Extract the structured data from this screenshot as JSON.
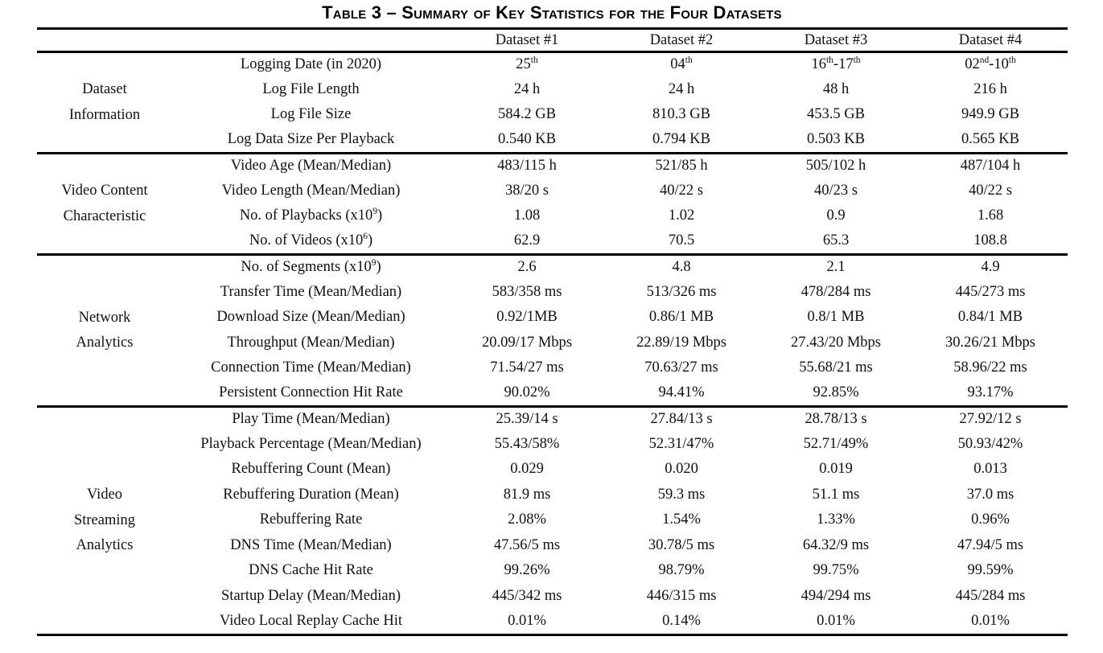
{
  "title": "Table 3 – Summary of Key Statistics for the Four Datasets",
  "table": {
    "corner_label": "",
    "column_headers": [
      "Dataset #1",
      "Dataset #2",
      "Dataset #3",
      "Dataset #4"
    ],
    "groups": [
      {
        "label": "Dataset Information",
        "label_lines": [
          "Dataset",
          "Information"
        ],
        "rows": [
          {
            "label": "Logging Date (in 2020)",
            "values": [
              "25^{th}",
              "04^{th}",
              "16^{th}-17^{th}",
              "02^{nd}-10^{th}"
            ]
          },
          {
            "label": "Log File Length",
            "values": [
              "24 h",
              "24 h",
              "48 h",
              "216 h"
            ]
          },
          {
            "label": "Log File Size",
            "values": [
              "584.2 GB",
              "810.3 GB",
              "453.5 GB",
              "949.9 GB"
            ]
          },
          {
            "label": "Log Data Size Per Playback",
            "values": [
              "0.540 KB",
              "0.794 KB",
              "0.503 KB",
              "0.565 KB"
            ]
          }
        ]
      },
      {
        "label": "Video Content Characteristic",
        "label_lines": [
          "Video Content",
          "Characteristic"
        ],
        "rows": [
          {
            "label": "Video Age (Mean/Median)",
            "values": [
              "483/115 h",
              "521/85 h",
              "505/102 h",
              "487/104 h"
            ]
          },
          {
            "label": "Video Length (Mean/Median)",
            "values": [
              "38/20 s",
              "40/22 s",
              "40/23 s",
              "40/22 s"
            ]
          },
          {
            "label": "No. of Playbacks (x10^{9})",
            "values": [
              "1.08",
              "1.02",
              "0.9",
              "1.68"
            ]
          },
          {
            "label": "No. of Videos (x10^{6})",
            "values": [
              "62.9",
              "70.5",
              "65.3",
              "108.8"
            ]
          }
        ]
      },
      {
        "label": "Network Analytics",
        "label_lines": [
          "Network",
          "Analytics"
        ],
        "rows": [
          {
            "label": "No. of Segments (x10^{9})",
            "values": [
              "2.6",
              "4.8",
              "2.1",
              "4.9"
            ]
          },
          {
            "label": "Transfer Time (Mean/Median)",
            "values": [
              "583/358 ms",
              "513/326 ms",
              "478/284 ms",
              "445/273 ms"
            ]
          },
          {
            "label": "Download Size (Mean/Median)",
            "values": [
              "0.92/1MB",
              "0.86/1 MB",
              "0.8/1 MB",
              "0.84/1 MB"
            ]
          },
          {
            "label": "Throughput (Mean/Median)",
            "values": [
              "20.09/17 Mbps",
              "22.89/19 Mbps",
              "27.43/20 Mbps",
              "30.26/21 Mbps"
            ]
          },
          {
            "label": "Connection Time (Mean/Median)",
            "values": [
              "71.54/27 ms",
              "70.63/27 ms",
              "55.68/21 ms",
              "58.96/22 ms"
            ]
          },
          {
            "label": "Persistent Connection Hit Rate",
            "values": [
              "90.02%",
              "94.41%",
              "92.85%",
              "93.17%"
            ]
          }
        ]
      },
      {
        "label": "Video Streaming Analytics",
        "label_lines": [
          "Video",
          "Streaming",
          "Analytics"
        ],
        "rows": [
          {
            "label": "Play Time (Mean/Median)",
            "values": [
              "25.39/14 s",
              "27.84/13 s",
              "28.78/13 s",
              "27.92/12 s"
            ]
          },
          {
            "label": "Playback Percentage (Mean/Median)",
            "values": [
              "55.43/58%",
              "52.31/47%",
              "52.71/49%",
              "50.93/42%"
            ]
          },
          {
            "label": "Rebuffering Count (Mean)",
            "values": [
              "0.029",
              "0.020",
              "0.019",
              "0.013"
            ]
          },
          {
            "label": "Rebuffering Duration (Mean)",
            "values": [
              "81.9 ms",
              "59.3 ms",
              "51.1 ms",
              "37.0 ms"
            ]
          },
          {
            "label": "Rebuffering Rate",
            "values": [
              "2.08%",
              "1.54%",
              "1.33%",
              "0.96%"
            ]
          },
          {
            "label": "DNS Time (Mean/Median)",
            "values": [
              "47.56/5 ms",
              "30.78/5 ms",
              "64.32/9 ms",
              "47.94/5 ms"
            ]
          },
          {
            "label": "DNS Cache Hit Rate",
            "values": [
              "99.26%",
              "98.79%",
              "99.75%",
              "99.59%"
            ]
          },
          {
            "label": "Startup Delay (Mean/Median)",
            "values": [
              "445/342 ms",
              "446/315 ms",
              "494/294 ms",
              "445/284 ms"
            ]
          },
          {
            "label": "Video Local Replay Cache Hit",
            "values": [
              "0.01%",
              "0.14%",
              "0.01%",
              "0.01%"
            ]
          }
        ]
      }
    ]
  }
}
